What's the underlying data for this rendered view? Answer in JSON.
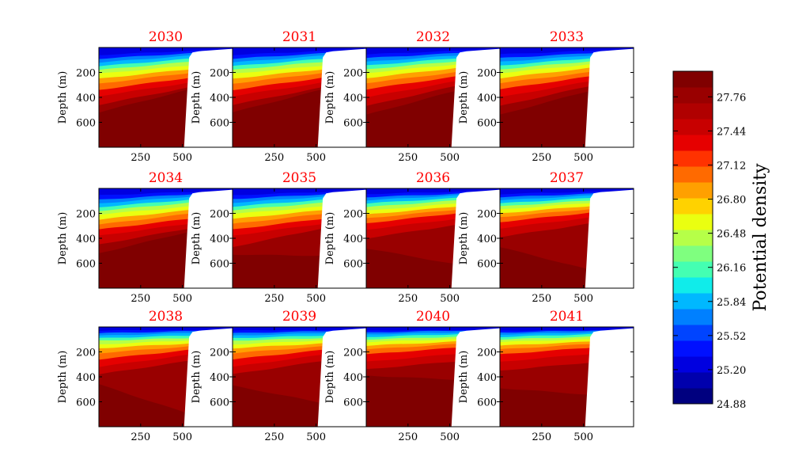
{
  "chart_data": {
    "type": "heatmap",
    "panel_titles": [
      "2030",
      "2031",
      "2032",
      "2033",
      "2034",
      "2035",
      "2036",
      "2037",
      "2038",
      "2039",
      "2040",
      "2041"
    ],
    "ylabel": "Depth (m)",
    "y_ticks": [
      200,
      400,
      600
    ],
    "x_ticks": [
      250,
      500
    ],
    "xlim": [
      0,
      800
    ],
    "ylim": [
      800,
      0
    ],
    "colorbar": {
      "label": "Potential density",
      "range": [
        24.88,
        28.0
      ],
      "ticks": [
        24.88,
        25.2,
        25.52,
        25.84,
        26.16,
        26.48,
        26.8,
        27.12,
        27.44,
        27.76
      ],
      "tick_labels": [
        "24.88",
        "25.20",
        "25.52",
        "25.84",
        "26.16",
        "26.48",
        "26.80",
        "27.12",
        "27.44",
        "27.76"
      ],
      "levels": 39
    },
    "bottom_depth_profile": {
      "x": [
        0,
        100,
        200,
        300,
        400,
        450,
        500,
        510,
        540,
        560,
        600,
        700,
        800
      ],
      "depth": [
        800,
        800,
        800,
        800,
        800,
        800,
        800,
        800,
        80,
        40,
        30,
        20,
        10
      ]
    },
    "panels": [
      {
        "year": "2030",
        "isopycnal_depths_0m": [
          20,
          60,
          90,
          120,
          150,
          180,
          210,
          250,
          290,
          340,
          390,
          460,
          520
        ],
        "isopycnal_depths_500m": [
          10,
          30,
          50,
          70,
          95,
          120,
          150,
          180,
          210,
          250,
          290,
          330,
          350
        ]
      },
      {
        "year": "2031",
        "isopycnal_depths_0m": [
          20,
          60,
          90,
          120,
          150,
          180,
          210,
          250,
          290,
          340,
          390,
          460,
          520
        ],
        "isopycnal_depths_500m": [
          10,
          30,
          50,
          70,
          95,
          120,
          150,
          180,
          210,
          250,
          290,
          330,
          350
        ]
      },
      {
        "year": "2032",
        "isopycnal_depths_0m": [
          20,
          55,
          85,
          115,
          145,
          175,
          205,
          245,
          285,
          335,
          400,
          470,
          540
        ],
        "isopycnal_depths_500m": [
          10,
          28,
          48,
          68,
          90,
          115,
          140,
          170,
          205,
          240,
          280,
          320,
          360
        ]
      },
      {
        "year": "2033",
        "isopycnal_depths_0m": [
          20,
          55,
          85,
          115,
          145,
          175,
          205,
          245,
          285,
          335,
          400,
          470,
          540
        ],
        "isopycnal_depths_500m": [
          10,
          28,
          48,
          68,
          90,
          115,
          140,
          170,
          205,
          240,
          280,
          320,
          360
        ]
      },
      {
        "year": "2034",
        "isopycnal_depths_0m": [
          20,
          55,
          90,
          120,
          150,
          180,
          210,
          250,
          290,
          330,
          380,
          450,
          520
        ],
        "isopycnal_depths_500m": [
          10,
          30,
          50,
          70,
          95,
          120,
          150,
          180,
          210,
          250,
          290,
          330,
          360
        ]
      },
      {
        "year": "2035",
        "isopycnal_depths_0m": [
          20,
          55,
          85,
          115,
          145,
          175,
          205,
          245,
          285,
          330,
          380,
          470,
          530
        ],
        "isopycnal_depths_500m": [
          10,
          30,
          50,
          70,
          95,
          120,
          150,
          180,
          210,
          250,
          290,
          330,
          540
        ]
      },
      {
        "year": "2036",
        "isopycnal_depths_0m": [
          15,
          45,
          70,
          95,
          120,
          150,
          180,
          210,
          240,
          280,
          330,
          400,
          480
        ],
        "isopycnal_depths_500m": [
          10,
          28,
          45,
          60,
          80,
          100,
          125,
          150,
          175,
          205,
          250,
          300,
          600
        ]
      },
      {
        "year": "2037",
        "isopycnal_depths_0m": [
          15,
          45,
          70,
          95,
          120,
          145,
          170,
          200,
          230,
          270,
          320,
          390,
          470
        ],
        "isopycnal_depths_500m": [
          10,
          28,
          45,
          60,
          80,
          100,
          120,
          145,
          170,
          200,
          240,
          290,
          640
        ]
      },
      {
        "year": "2038",
        "isopycnal_depths_0m": [
          10,
          30,
          50,
          70,
          90,
          110,
          140,
          170,
          210,
          260,
          320,
          380,
          460
        ],
        "isopycnal_depths_500m": [
          8,
          20,
          35,
          50,
          70,
          90,
          110,
          135,
          160,
          190,
          230,
          280,
          680
        ]
      },
      {
        "year": "2039",
        "isopycnal_depths_0m": [
          10,
          30,
          50,
          70,
          90,
          110,
          140,
          170,
          210,
          260,
          320,
          380,
          470
        ],
        "isopycnal_depths_500m": [
          8,
          20,
          35,
          50,
          70,
          90,
          110,
          135,
          160,
          190,
          230,
          280,
          600
        ]
      },
      {
        "year": "2040",
        "isopycnal_depths_0m": [
          10,
          30,
          45,
          60,
          80,
          100,
          120,
          150,
          180,
          220,
          280,
          340,
          390
        ],
        "isopycnal_depths_500m": [
          8,
          20,
          30,
          45,
          60,
          80,
          100,
          120,
          140,
          170,
          220,
          280,
          420
        ]
      },
      {
        "year": "2041",
        "isopycnal_depths_0m": [
          10,
          30,
          45,
          60,
          80,
          100,
          120,
          150,
          180,
          220,
          280,
          350,
          490
        ],
        "isopycnal_depths_500m": [
          8,
          20,
          30,
          45,
          60,
          80,
          100,
          120,
          140,
          170,
          220,
          290,
          540
        ]
      }
    ],
    "colors": {
      "title": "#ff0000",
      "bands": [
        "#00007f",
        "#0000ad",
        "#0000e0",
        "#0010ff",
        "#0044ff",
        "#0080ff",
        "#00b8ff",
        "#10ecea",
        "#44ffb2",
        "#7fff7f",
        "#b6ff48",
        "#eaff10",
        "#ffd200",
        "#ffa000",
        "#ff6a00",
        "#ff3200",
        "#e60000",
        "#c80000",
        "#b00000",
        "#990000",
        "#800000"
      ]
    }
  }
}
